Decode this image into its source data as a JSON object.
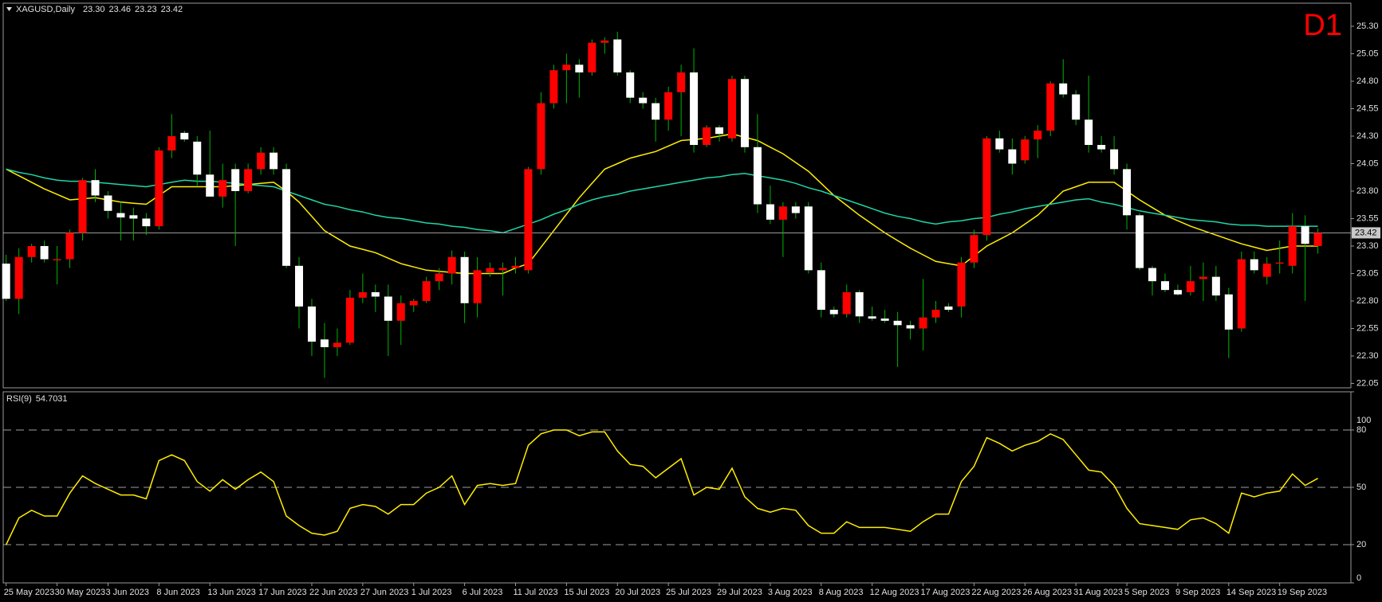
{
  "chart_data": [
    {
      "type": "candlestick",
      "title": "XAGUSD,Daily",
      "timeframe": "D1",
      "ohlc_labels": [
        "23.30",
        "23.46",
        "23.23",
        "23.42"
      ],
      "categories": [
        "25 May 2023",
        null,
        null,
        null,
        "30 May 2023",
        null,
        null,
        null,
        "3 Jun 2023",
        null,
        null,
        null,
        "8 Jun 2023",
        null,
        null,
        null,
        "13 Jun 2023",
        null,
        null,
        null,
        "17 Jun 2023",
        null,
        null,
        null,
        "22 Jun 2023",
        null,
        null,
        null,
        "27 Jun 2023",
        null,
        null,
        null,
        "1 Jul 2023",
        null,
        null,
        null,
        "6 Jul 2023",
        null,
        null,
        null,
        "11 Jul 2023",
        null,
        null,
        null,
        "15 Jul 2023",
        null,
        null,
        null,
        "20 Jul 2023",
        null,
        null,
        null,
        "25 Jul 2023",
        null,
        null,
        null,
        "29 Jul 2023",
        null,
        null,
        null,
        "3 Aug 2023",
        null,
        null,
        null,
        "8 Aug 2023",
        null,
        null,
        null,
        "12 Aug 2023",
        null,
        null,
        null,
        "17 Aug 2023",
        null,
        null,
        null,
        "22 Aug 2023",
        null,
        null,
        null,
        "26 Aug 2023",
        null,
        null,
        null,
        "31 Aug 2023",
        null,
        null,
        null,
        "5 Sep 2023",
        null,
        null,
        null,
        "9 Sep 2023",
        null,
        null,
        null,
        "14 Sep 2023",
        null,
        null,
        null,
        "19 Sep 2023",
        null,
        null,
        null
      ],
      "open": [
        23.14,
        22.82,
        23.2,
        23.3,
        23.17,
        23.18,
        23.42,
        23.9,
        23.76,
        23.6,
        23.58,
        23.55,
        23.48,
        24.17,
        24.33,
        24.25,
        23.95,
        23.75,
        24.0,
        23.8,
        24.0,
        24.15,
        24.0,
        23.12,
        22.75,
        22.45,
        22.38,
        22.42,
        22.83,
        22.88,
        22.84,
        22.62,
        22.76,
        22.8,
        22.98,
        23.05,
        23.2,
        22.78,
        23.06,
        23.08,
        23.1,
        23.08,
        24.0,
        24.6,
        24.9,
        24.95,
        24.88,
        25.15,
        25.18,
        24.88,
        24.65,
        24.6,
        24.45,
        24.7,
        24.88,
        24.22,
        24.38,
        24.28,
        24.82,
        24.2,
        23.68,
        23.54,
        23.66,
        23.66,
        23.08,
        22.72,
        22.68,
        22.88,
        22.66,
        22.64,
        22.62,
        22.58,
        22.55,
        22.65,
        22.75,
        22.75,
        23.15,
        23.4,
        24.28,
        24.18,
        24.08,
        24.27,
        24.35,
        24.78,
        24.68,
        24.45,
        24.22,
        24.18,
        24.0,
        23.58,
        23.1,
        22.98,
        22.9,
        22.88,
        23.0,
        23.02,
        22.86,
        22.55,
        23.18,
        23.02,
        23.14,
        23.12,
        23.48,
        23.3
      ],
      "high": [
        23.22,
        23.28,
        23.32,
        23.35,
        23.3,
        23.45,
        23.92,
        24.0,
        23.8,
        23.7,
        23.65,
        23.6,
        24.2,
        24.5,
        24.35,
        24.3,
        24.35,
        24.05,
        24.05,
        24.05,
        24.2,
        24.2,
        24.05,
        23.2,
        22.82,
        22.6,
        22.55,
        22.9,
        23.05,
        22.95,
        22.95,
        22.85,
        22.82,
        23.02,
        23.1,
        23.26,
        23.25,
        23.2,
        23.15,
        23.15,
        23.2,
        24.02,
        24.7,
        24.95,
        25.05,
        25.0,
        25.18,
        25.2,
        25.25,
        24.9,
        24.7,
        24.65,
        24.75,
        24.95,
        25.1,
        24.4,
        24.4,
        24.85,
        24.85,
        24.5,
        23.85,
        23.7,
        23.7,
        23.7,
        23.15,
        22.75,
        22.95,
        22.9,
        22.75,
        22.72,
        22.7,
        22.62,
        23.0,
        22.8,
        22.78,
        23.2,
        23.45,
        24.3,
        24.35,
        24.28,
        24.3,
        24.4,
        24.8,
        25.0,
        24.72,
        24.85,
        24.3,
        24.3,
        24.05,
        23.6,
        23.12,
        23.05,
        22.95,
        23.12,
        23.15,
        23.12,
        22.92,
        23.25,
        23.25,
        23.2,
        23.35,
        23.6,
        23.58,
        23.46
      ],
      "low": [
        22.8,
        22.68,
        23.15,
        23.15,
        22.95,
        23.1,
        23.35,
        23.7,
        23.55,
        23.35,
        23.35,
        23.4,
        23.45,
        24.1,
        24.25,
        23.85,
        23.75,
        23.65,
        23.3,
        23.78,
        23.95,
        23.95,
        23.1,
        22.55,
        22.3,
        22.1,
        22.3,
        22.4,
        22.78,
        22.7,
        22.3,
        22.4,
        22.7,
        22.78,
        22.9,
        22.95,
        22.6,
        22.65,
        23.02,
        22.85,
        23.05,
        23.05,
        23.95,
        24.55,
        24.6,
        24.65,
        24.85,
        25.05,
        24.85,
        24.6,
        24.55,
        24.25,
        24.35,
        24.3,
        24.15,
        24.2,
        24.25,
        24.25,
        24.15,
        23.6,
        23.5,
        23.2,
        23.55,
        23.05,
        22.65,
        22.65,
        22.65,
        22.6,
        22.62,
        22.6,
        22.2,
        22.45,
        22.35,
        22.6,
        22.7,
        22.65,
        23.1,
        23.35,
        24.15,
        23.95,
        24.05,
        24.1,
        24.3,
        24.65,
        24.4,
        24.15,
        24.15,
        23.95,
        23.45,
        23.08,
        22.85,
        22.88,
        22.85,
        22.85,
        22.8,
        22.8,
        22.28,
        22.52,
        23.05,
        22.95,
        23.05,
        23.05,
        22.8,
        23.23
      ],
      "close": [
        22.82,
        23.2,
        23.3,
        23.18,
        23.18,
        23.42,
        23.9,
        23.76,
        23.62,
        23.56,
        23.55,
        23.48,
        24.17,
        24.3,
        24.27,
        23.95,
        23.75,
        23.9,
        23.8,
        24.0,
        24.15,
        24.0,
        23.12,
        22.75,
        22.43,
        22.38,
        22.42,
        22.83,
        22.88,
        22.84,
        22.62,
        22.78,
        22.8,
        22.98,
        23.05,
        23.2,
        22.78,
        23.08,
        23.1,
        23.1,
        23.12,
        24.0,
        24.6,
        24.9,
        24.95,
        24.88,
        25.15,
        25.17,
        24.88,
        24.65,
        24.6,
        24.45,
        24.7,
        24.88,
        24.22,
        24.38,
        24.32,
        24.82,
        24.2,
        23.68,
        23.54,
        23.66,
        23.6,
        23.08,
        22.72,
        22.68,
        22.88,
        22.66,
        22.64,
        22.62,
        22.58,
        22.55,
        22.65,
        22.72,
        22.72,
        23.15,
        23.4,
        24.28,
        24.18,
        24.05,
        24.27,
        24.35,
        24.78,
        24.68,
        24.45,
        24.22,
        24.18,
        24.0,
        23.58,
        23.1,
        22.98,
        22.9,
        22.86,
        22.98,
        23.02,
        22.85,
        22.54,
        23.18,
        23.08,
        23.14,
        23.15,
        23.48,
        23.32,
        23.42
      ],
      "up_color": "#ff0000",
      "down_color": "#ffffff",
      "wick_color": "#00b400",
      "overlays": [
        {
          "color": "#ffee00",
          "values": [
            24.0,
            23.94,
            23.88,
            23.82,
            23.77,
            23.72,
            23.73,
            23.74,
            23.72,
            23.7,
            23.69,
            23.68,
            23.76,
            23.84,
            23.84,
            23.84,
            23.84,
            23.84,
            23.85,
            23.86,
            23.87,
            23.88,
            23.8,
            23.7,
            23.57,
            23.44,
            23.37,
            23.3,
            23.27,
            23.24,
            23.19,
            23.14,
            23.11,
            23.08,
            23.07,
            23.06,
            23.05,
            23.05,
            23.05,
            23.05,
            23.1,
            23.14,
            23.29,
            23.44,
            23.59,
            23.74,
            23.87,
            24.0,
            24.05,
            24.1,
            24.13,
            24.16,
            24.21,
            24.26,
            24.27,
            24.28,
            24.3,
            24.32,
            24.29,
            24.26,
            24.2,
            24.14,
            24.06,
            23.98,
            23.87,
            23.76,
            23.67,
            23.58,
            23.5,
            23.42,
            23.35,
            23.28,
            23.22,
            23.16,
            23.14,
            23.12,
            23.21,
            23.3,
            23.36,
            23.42,
            23.5,
            23.58,
            23.69,
            23.8,
            23.84,
            23.88,
            23.88,
            23.88,
            23.8,
            23.72,
            23.65,
            23.58,
            23.53,
            23.48,
            23.44,
            23.4,
            23.36,
            23.32,
            23.29,
            23.26,
            23.28,
            23.3,
            23.3,
            23.3
          ]
        },
        {
          "color": "#1fd6a6",
          "values": [
            24.0,
            23.97,
            23.95,
            23.92,
            23.9,
            23.89,
            23.89,
            23.88,
            23.87,
            23.86,
            23.85,
            23.84,
            23.86,
            23.88,
            23.9,
            23.89,
            23.89,
            23.88,
            23.87,
            23.86,
            23.85,
            23.84,
            23.8,
            23.76,
            23.72,
            23.68,
            23.66,
            23.63,
            23.61,
            23.58,
            23.56,
            23.55,
            23.53,
            23.51,
            23.5,
            23.48,
            23.47,
            23.45,
            23.44,
            23.42,
            23.46,
            23.5,
            23.54,
            23.59,
            23.63,
            23.68,
            23.72,
            23.75,
            23.77,
            23.8,
            23.82,
            23.84,
            23.86,
            23.88,
            23.9,
            23.92,
            23.93,
            23.95,
            23.96,
            23.94,
            23.92,
            23.9,
            23.87,
            23.83,
            23.8,
            23.76,
            23.72,
            23.68,
            23.64,
            23.6,
            23.57,
            23.55,
            23.52,
            23.5,
            23.52,
            23.53,
            23.55,
            23.56,
            23.59,
            23.61,
            23.64,
            23.66,
            23.68,
            23.7,
            23.72,
            23.73,
            23.7,
            23.68,
            23.65,
            23.62,
            23.6,
            23.58,
            23.56,
            23.54,
            23.53,
            23.52,
            23.5,
            23.49,
            23.49,
            23.48,
            23.48,
            23.48,
            23.48,
            23.48
          ]
        }
      ],
      "ylim": [
        22.01,
        25.51
      ],
      "yticks": [
        {
          "value": 22.05,
          "label": "22.05"
        },
        {
          "value": 22.3,
          "label": "22.30"
        },
        {
          "value": 22.55,
          "label": "22.55"
        },
        {
          "value": 22.8,
          "label": "22.80"
        },
        {
          "value": 23.05,
          "label": "23.05"
        },
        {
          "value": 23.3,
          "label": "23.30"
        },
        {
          "value": 23.55,
          "label": "23.55"
        },
        {
          "value": 23.8,
          "label": "23.80"
        },
        {
          "value": 24.05,
          "label": "24.05"
        },
        {
          "value": 24.3,
          "label": "24.30"
        },
        {
          "value": 24.55,
          "label": "24.55"
        },
        {
          "value": 24.8,
          "label": "24.80"
        },
        {
          "value": 25.05,
          "label": "25.05"
        },
        {
          "value": 25.3,
          "label": "25.30"
        }
      ],
      "grid": false
    },
    {
      "type": "line",
      "title": "RSI(9)",
      "color": "#ffee00",
      "values": [
        20,
        34,
        38,
        35,
        35,
        47,
        56,
        52,
        49,
        46,
        46,
        44,
        64,
        67,
        64,
        53,
        48,
        54,
        49,
        54,
        58,
        53,
        35,
        30,
        26,
        25,
        27,
        39,
        41,
        40,
        36,
        41,
        41,
        47,
        50,
        56,
        41,
        51,
        52,
        51,
        52,
        72,
        78,
        80,
        80,
        77,
        79,
        79,
        69,
        62,
        61,
        55,
        60,
        65,
        46,
        50,
        49,
        60,
        45,
        39,
        37,
        39,
        38,
        30,
        26,
        26,
        32,
        29,
        29,
        29,
        28,
        27,
        32,
        36,
        36,
        53,
        61,
        76,
        73,
        69,
        72,
        74,
        78,
        75,
        67,
        59,
        58,
        51,
        39,
        31,
        30,
        29,
        28,
        33,
        34,
        31,
        26,
        47,
        45,
        47,
        48,
        57,
        51,
        54.7031
      ],
      "ylim": [
        0,
        100
      ],
      "yticks": [
        0,
        20,
        50,
        80,
        100
      ],
      "levels": [
        80,
        50,
        20
      ],
      "level_color": "#a0a0a0",
      "grid": false
    }
  ]
}
